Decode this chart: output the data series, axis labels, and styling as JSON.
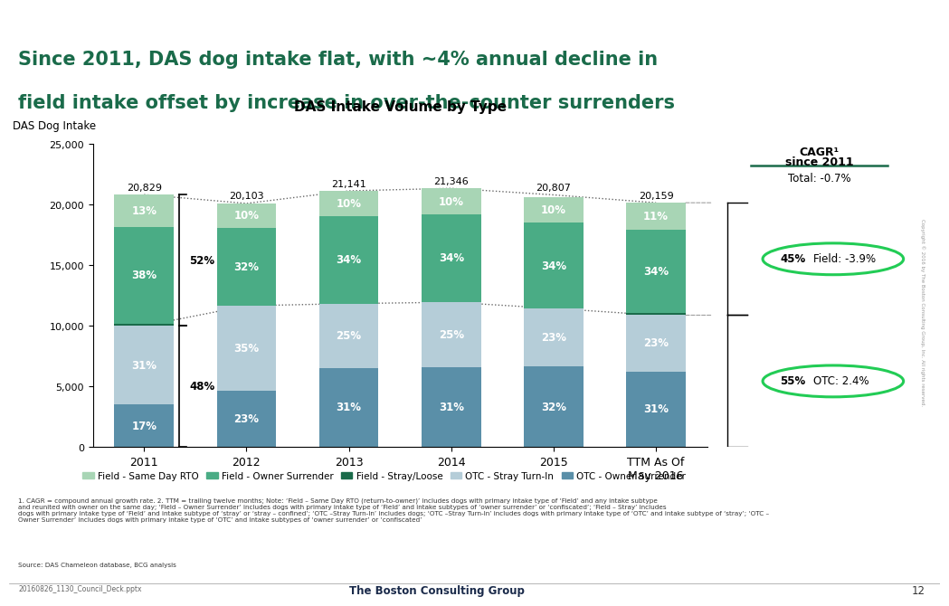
{
  "title": "DAS Intake Volume by Type",
  "ylabel": "DAS Dog Intake",
  "main_title_line1": "Since 2011, DAS dog intake flat, with ~4% annual decline in",
  "main_title_line2": "field intake offset by increase in over-the-counter surrenders",
  "categories": [
    "2011",
    "2012",
    "2013",
    "2014",
    "2015",
    "TTM As Of\nMay 2016"
  ],
  "totals": [
    20829,
    20103,
    21141,
    21346,
    20807,
    20159
  ],
  "pct_data": {
    "OTC - Owner Surrender": [
      0.17,
      0.23,
      0.31,
      0.31,
      0.32,
      0.31
    ],
    "OTC - Stray Turn-In": [
      0.31,
      0.35,
      0.25,
      0.25,
      0.23,
      0.23
    ],
    "Field - Stray/Loose": [
      0.01,
      0.0,
      0.0,
      0.0,
      0.0,
      0.01
    ],
    "Field - Owner Surrender": [
      0.38,
      0.32,
      0.34,
      0.34,
      0.34,
      0.34
    ],
    "Field - Same Day RTO": [
      0.13,
      0.1,
      0.1,
      0.1,
      0.1,
      0.11
    ]
  },
  "pct_labels": {
    "OTC - Owner Surrender": [
      "17%",
      "23%",
      "31%",
      "31%",
      "32%",
      "31%"
    ],
    "OTC - Stray Turn-In": [
      "31%",
      "35%",
      "25%",
      "25%",
      "23%",
      "23%"
    ],
    "Field - Owner Surrender": [
      "38%",
      "32%",
      "34%",
      "34%",
      "34%",
      "34%"
    ],
    "Field - Same Day RTO": [
      "13%",
      "10%",
      "10%",
      "10%",
      "10%",
      "11%"
    ]
  },
  "colors": {
    "Field - Same Day RTO": "#a8d5b5",
    "Field - Owner Surrender": "#4aac85",
    "Field - Stray/Loose": "#1a6b4a",
    "OTC - Stray Turn-In": "#b5cdd8",
    "OTC - Owner Surrender": "#5a8fa8"
  },
  "header_bg": "#1a6b4a",
  "header_text_color": "#ffffff",
  "title_color": "#1a6b4a",
  "cagr_total": "Total: -0.7%",
  "cagr_field_pct": "45%",
  "cagr_field_label": "Field: -3.9%",
  "cagr_otc_pct": "55%",
  "cagr_otc_label": "OTC: 2.4%",
  "bracket_field_pct": "52%",
  "bracket_otc_pct": "48%",
  "background_color": "#ffffff",
  "ylim": [
    0,
    25000
  ],
  "yticks": [
    0,
    5000,
    10000,
    15000,
    20000,
    25000
  ],
  "source": "Source: DAS Chameleon database, BCG analysis",
  "slide_num": "12",
  "file_ref": "20160826_1130_Council_Deck.pptx",
  "bcg_text": "The Boston Consulting Group",
  "copyright_text": "Copyright © 2016 by The Boston Consulting Group, Inc. All rights reserved.",
  "footnote1": "1. CAGR = compound annual growth rate. 2. TTM = trailing twelve months; Note: ‘Field – Same Day RTO (return-to-owner)’ includes dogs with primary intake type of ‘Field’ and any intake subtype",
  "footnote2": "and reunited with owner on the same day; ‘Field – Owner Surrender’ includes dogs with primary intake type of ‘Field’ and intake subtypes of ‘owner surrender’ or ‘confiscated’; ‘Field – Stray’ includes",
  "footnote3": "dogs with primary intake type of ‘Field’ and intake subtype of ‘stray’ or ‘stray – confined’; ‘OTC –Stray Turn-In’ includes dogs; ‘OTC –Stray Turn-In’ includes dogs with primary intake type of ‘OTC’ and intake subtype of ‘stray’; ‘OTC –",
  "footnote4": "Owner Surrender’ includes dogs with primary intake type of ‘OTC’ and intake subtypes of ‘owner surrender’ or ‘confiscated’"
}
